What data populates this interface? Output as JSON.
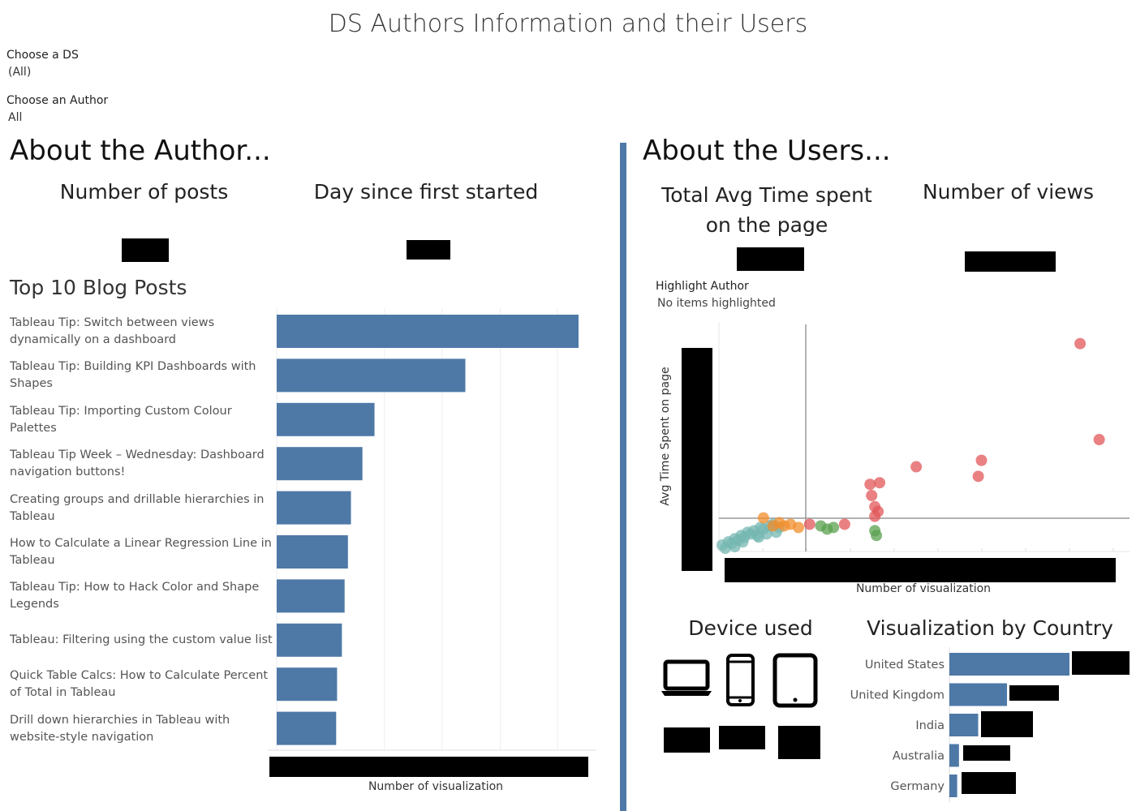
{
  "title": "DS Authors Information and their Users",
  "filters": {
    "ds": {
      "label": "Choose a DS",
      "value": "(All)"
    },
    "author": {
      "label": "Choose an Author",
      "value": "All"
    }
  },
  "left": {
    "heading": "About the Author...",
    "kpi1_title": "Number of posts",
    "kpi2_title": "Day since first started",
    "top_posts_title": "Top 10 Blog Posts",
    "axis_title": "Number of visualization"
  },
  "right": {
    "heading": "About the Users...",
    "kpi1_title": "Total Avg Time spent on the page",
    "kpi2_title": "Number of views",
    "highlight_label": "Highlight Author",
    "highlight_value": "No items highlighted",
    "scatter_xlabel": "Number of visualization",
    "scatter_ylabel": "Avg Time Spent on page",
    "device_title": "Device used",
    "country_title": "Visualization  by Country"
  },
  "devices": [
    {
      "icon": "laptop-icon"
    },
    {
      "icon": "phone-icon"
    },
    {
      "icon": "tablet-icon"
    }
  ],
  "chart_data": [
    {
      "type": "bar",
      "orientation": "horizontal",
      "title": "Top 10 Blog Posts",
      "xlabel": "Number of visualization",
      "color": "#4e79a7",
      "categories": [
        "Tableau Tip: Switch between views dynamically on a dashboard",
        "Tableau Tip: Building KPI Dashboards with Shapes",
        "Tableau Tip: Importing Custom Colour Palettes",
        "Tableau Tip Week – Wednesday: Dashboard navigation buttons!",
        "Creating groups and drillable hierarchies in Tableau",
        "How to Calculate a Linear Regression Line in Tableau",
        "Tableau Tip: How to Hack Color and Shape Legends",
        "Tableau: Filtering using the custom value list",
        "Quick Table Calcs: How to Calculate Percent of Total in Tableau",
        "Drill down hierarchies in Tableau with website-style navigation"
      ],
      "values": [
        100,
        62.5,
        32.4,
        28.4,
        24.6,
        23.6,
        22.5,
        21.6,
        20,
        19.7
      ]
    },
    {
      "type": "scatter",
      "xlabel": "Number of visualization",
      "ylabel": "Avg Time Spent on page",
      "series": [
        {
          "color": "#76b7b2",
          "points": [
            [
              0.2,
              0.4
            ],
            [
              0.4,
              0.2
            ],
            [
              0.6,
              0.6
            ],
            [
              0.8,
              0.5
            ],
            [
              1.0,
              0.8
            ],
            [
              1.2,
              0.7
            ],
            [
              1.4,
              1.0
            ],
            [
              1.6,
              0.9
            ],
            [
              1.8,
              1.2
            ],
            [
              2.0,
              1.1
            ],
            [
              2.2,
              1.3
            ],
            [
              2.4,
              1.0
            ],
            [
              2.6,
              1.5
            ],
            [
              2.8,
              1.4
            ],
            [
              3.0,
              1.1
            ],
            [
              3.2,
              1.6
            ],
            [
              3.4,
              1.7
            ],
            [
              1.0,
              0.3
            ],
            [
              1.5,
              0.6
            ],
            [
              2.5,
              0.9
            ],
            [
              3.6,
              1.2
            ],
            [
              3.8,
              1.5
            ]
          ]
        },
        {
          "color": "#f28e2b",
          "points": [
            [
              2.8,
              2.1
            ],
            [
              3.4,
              1.6
            ],
            [
              3.8,
              1.8
            ],
            [
              4.1,
              1.6
            ],
            [
              4.5,
              1.7
            ],
            [
              5.0,
              1.5
            ]
          ]
        },
        {
          "color": "#59a14f",
          "points": [
            [
              6.4,
              1.6
            ],
            [
              6.8,
              1.4
            ],
            [
              7.2,
              1.5
            ],
            [
              9.8,
              1.3
            ],
            [
              9.9,
              1.0
            ]
          ]
        },
        {
          "color": "#e15759",
          "points": [
            [
              5.7,
              1.7
            ],
            [
              7.9,
              1.7
            ],
            [
              9.5,
              4.2
            ],
            [
              9.6,
              3.5
            ],
            [
              9.8,
              2.8
            ],
            [
              10.1,
              4.3
            ],
            [
              9.8,
              2.2
            ],
            [
              10.0,
              2.5
            ],
            [
              12.4,
              5.3
            ],
            [
              16.3,
              4.7
            ],
            [
              16.5,
              5.7
            ],
            [
              22.7,
              13.0
            ],
            [
              23.9,
              7.0
            ]
          ]
        }
      ]
    },
    {
      "type": "bar",
      "orientation": "horizontal",
      "title": "Visualization  by Country",
      "color": "#4e79a7",
      "categories": [
        "United States",
        "United Kingdom",
        "India",
        "Australia",
        "Germany"
      ],
      "values": [
        100,
        48,
        24,
        8,
        6.5
      ]
    }
  ]
}
